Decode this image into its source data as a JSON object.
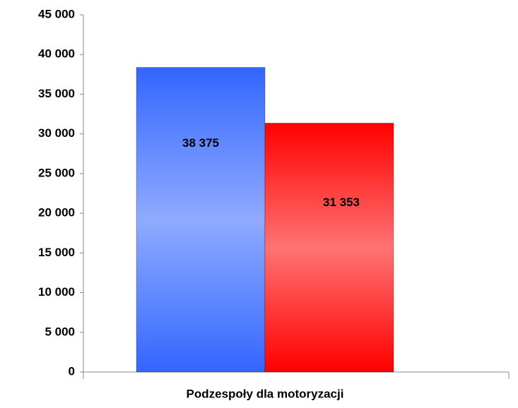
{
  "chart_data": {
    "type": "bar",
    "categories": [
      "Podzespoły dla motoryzacji"
    ],
    "series": [
      {
        "color": "#3366ff",
        "values": [
          38375
        ],
        "value_labels": [
          "38 375"
        ]
      },
      {
        "color": "#ff0000",
        "values": [
          31353
        ],
        "value_labels": [
          "31 353"
        ]
      }
    ],
    "ylim": [
      0,
      45000
    ],
    "yticks": [
      0,
      {
        "value": 5000,
        "label": "5 000"
      },
      {
        "value": 10000,
        "label": "10 000"
      },
      {
        "value": 15000,
        "label": "15 000"
      },
      {
        "value": 20000,
        "label": "20 000"
      },
      {
        "value": 25000,
        "label": "25 000"
      },
      {
        "value": 30000,
        "label": "30 000"
      },
      {
        "value": 35000,
        "label": "35 000"
      },
      {
        "value": 40000,
        "label": "40 000"
      },
      {
        "value": 45000,
        "label": "45 000"
      }
    ],
    "grid": false
  }
}
